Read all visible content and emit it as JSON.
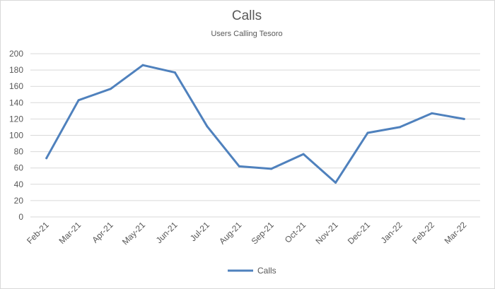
{
  "chart_data": {
    "type": "line",
    "title": "Calls",
    "subtitle": "Users Calling Tesoro",
    "xlabel": "",
    "ylabel": "",
    "categories": [
      "Feb-21",
      "Mar-21",
      "Apr-21",
      "May-21",
      "Jun-21",
      "Jul-21",
      "Aug-21",
      "Sep-21",
      "Oct-21",
      "Nov-21",
      "Dec-21",
      "Jan-22",
      "Feb-22",
      "Mar-22"
    ],
    "series": [
      {
        "name": "Calls",
        "color": "#4f81bd",
        "values": [
          72,
          143,
          157,
          186,
          177,
          111,
          62,
          59,
          77,
          42,
          103,
          110,
          127,
          120
        ]
      }
    ],
    "ylim": [
      0,
      200
    ],
    "yticks": [
      "0",
      "20",
      "40",
      "60",
      "80",
      "100",
      "120",
      "140",
      "160",
      "180",
      "200"
    ],
    "grid": true,
    "legend_position": "bottom"
  }
}
